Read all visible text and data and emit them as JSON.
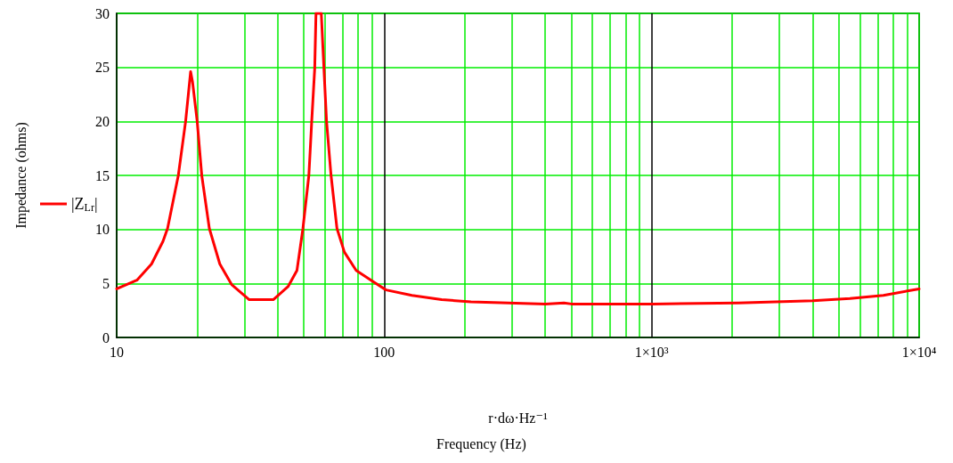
{
  "chart_data": {
    "type": "line",
    "xlabel": "r·dω·Hz⁻¹",
    "ylabel": "Impedance (ohms)",
    "annotations": [
      "Frequency (Hz)"
    ],
    "log": "x",
    "grid": true,
    "legend": "left",
    "marker": "none",
    "line_style": "solid",
    "xlim": [
      10,
      10000
    ],
    "xticks": [
      10,
      {
        "value": 20,
        "label": null
      },
      {
        "value": 30,
        "label": null
      },
      {
        "value": 40,
        "label": null
      },
      {
        "value": 50,
        "label": null
      },
      {
        "value": 60,
        "label": null
      },
      {
        "value": 70,
        "label": null
      },
      {
        "value": 80,
        "label": null
      },
      {
        "value": 90,
        "label": null
      },
      100,
      {
        "value": 200,
        "label": null
      },
      {
        "value": 300,
        "label": null
      },
      {
        "value": 400,
        "label": null
      },
      {
        "value": 500,
        "label": null
      },
      {
        "value": 600,
        "label": null
      },
      {
        "value": 700,
        "label": null
      },
      {
        "value": 800,
        "label": null
      },
      {
        "value": 900,
        "label": null
      },
      {
        "value": 1000,
        "label": "1×10³"
      },
      {
        "value": 2000,
        "label": null
      },
      {
        "value": 3000,
        "label": null
      },
      {
        "value": 4000,
        "label": null
      },
      {
        "value": 5000,
        "label": null
      },
      {
        "value": 6000,
        "label": null
      },
      {
        "value": 7000,
        "label": null
      },
      {
        "value": 8000,
        "label": null
      },
      {
        "value": 9000,
        "label": null
      },
      {
        "value": 10000,
        "label": "1×10⁴"
      }
    ],
    "ylim": [
      0,
      30
    ],
    "yticks": [
      0,
      5,
      10,
      15,
      20,
      25,
      30
    ],
    "series": [
      {
        "name": "|Z$_{Lr}$|",
        "color": "#ff0000",
        "x": [
          10,
          11.9,
          13.5,
          14.9,
          15.5,
          17,
          18.1,
          18.9,
          19.2,
          20,
          20.8,
          22.2,
          24.3,
          26.9,
          31.3,
          38.5,
          43.7,
          47.2,
          49.7,
          52.3,
          53.6,
          55,
          55.6,
          58.2,
          59,
          60.9,
          63.3,
          66.6,
          71,
          78.6,
          91.7,
          101.6,
          127,
          164,
          211,
          401,
          470,
          501,
          1012,
          2110,
          4000,
          5510,
          7350,
          10000
        ],
        "values": [
          4.5,
          5.3,
          6.8,
          8.9,
          10.1,
          15,
          20,
          24.6,
          23.7,
          20,
          15,
          10.1,
          6.8,
          4.9,
          3.5,
          3.5,
          4.7,
          6.2,
          10.1,
          15,
          20,
          24.9,
          30,
          30,
          26.9,
          20,
          15,
          10.1,
          7.9,
          6.2,
          5.1,
          4.4,
          3.9,
          3.5,
          3.3,
          3.1,
          3.2,
          3.1,
          3.1,
          3.2,
          3.4,
          3.6,
          3.9,
          4.5
        ]
      }
    ]
  }
}
